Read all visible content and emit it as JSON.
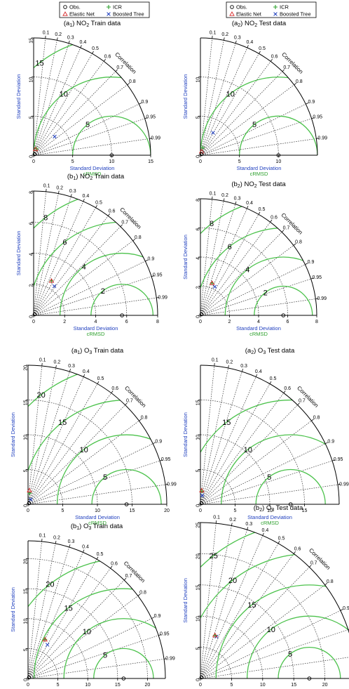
{
  "legend": {
    "items": [
      {
        "label": "Obs.",
        "marker": "circle",
        "color": "#000000"
      },
      {
        "label": "ICR",
        "marker": "plus",
        "color": "#2da02d"
      },
      {
        "label": "Elastic Net",
        "marker": "triangle",
        "color": "#d62728"
      },
      {
        "label": "Boosted Tree",
        "marker": "x",
        "color": "#1f3fbf"
      }
    ]
  },
  "labels": {
    "y_axis": "Standard Deviation",
    "x_axis": "Standard Deviation",
    "crmsd": "cRMSD",
    "correlation": "Correlation"
  },
  "colors": {
    "rms_arc": "#4cc24c",
    "axis_label": "#1f3fbf",
    "crmsd_label": "#2da02d"
  },
  "chart_data": [
    {
      "type": "scatter",
      "subtype": "taylor",
      "title_prefix": "(a",
      "subscript": "1",
      "title_suffix": ") NO",
      "chem_sub": "2",
      "title_end": " Train data",
      "smax": 15,
      "sd_ticks": [
        0,
        5,
        10,
        15
      ],
      "rms_levels": [
        5,
        10,
        15
      ],
      "obs_sd": 10,
      "correlation_ticks": [
        0.1,
        0.2,
        0.3,
        0.4,
        0.5,
        0.6,
        0.7,
        0.8,
        0.9,
        0.95,
        0.99
      ],
      "points": [
        {
          "name": "Boosted Tree",
          "sd": 3.6,
          "corr": 0.75
        },
        {
          "name": "ICR",
          "sd": 0.9,
          "corr": 0.4
        },
        {
          "name": "Elastic Net",
          "sd": 0.8,
          "corr": 0.3
        }
      ]
    },
    {
      "type": "scatter",
      "subtype": "taylor",
      "title_prefix": "(a",
      "subscript": "2",
      "title_suffix": ") NO",
      "chem_sub": "2",
      "title_end": " Test data",
      "smax": 15,
      "sd_ticks": [
        0,
        5,
        10
      ],
      "rms_levels": [
        5,
        10
      ],
      "obs_sd": 10,
      "correlation_ticks": [
        0.1,
        0.2,
        0.3,
        0.4,
        0.5,
        0.6,
        0.7,
        0.8,
        0.9,
        0.95,
        0.99
      ],
      "points": [
        {
          "name": "Boosted Tree",
          "sd": 3.3,
          "corr": 0.49
        },
        {
          "name": "ICR",
          "sd": 1.0,
          "corr": 0.3
        },
        {
          "name": "Elastic Net",
          "sd": 0.5,
          "corr": 0.3
        }
      ]
    },
    {
      "type": "scatter",
      "subtype": "taylor",
      "title_prefix": "(b",
      "subscript": "1",
      "title_suffix": ") NO",
      "chem_sub": "2",
      "title_end": " Train data",
      "smax": 8,
      "sd_ticks": [
        0,
        2,
        4,
        6,
        8
      ],
      "rms_levels": [
        2,
        4,
        6,
        8
      ],
      "obs_sd": 5.7,
      "correlation_ticks": [
        0.1,
        0.2,
        0.3,
        0.4,
        0.5,
        0.6,
        0.7,
        0.8,
        0.9,
        0.95,
        0.99
      ],
      "points": [
        {
          "name": "Boosted Tree",
          "sd": 2.3,
          "corr": 0.58
        },
        {
          "name": "ICR",
          "sd": 2.5,
          "corr": 0.46
        },
        {
          "name": "Elastic Net",
          "sd": 2.5,
          "corr": 0.46
        }
      ]
    },
    {
      "type": "scatter",
      "subtype": "taylor",
      "title_prefix": "(b",
      "subscript": "2",
      "title_suffix": ") NO",
      "chem_sub": "2",
      "title_end": " Test data",
      "smax": 8,
      "sd_ticks": [
        0,
        2,
        4,
        6,
        8
      ],
      "rms_levels": [
        2,
        4,
        6,
        8
      ],
      "obs_sd": 5.7,
      "correlation_ticks": [
        0.1,
        0.2,
        0.3,
        0.4,
        0.5,
        0.6,
        0.7,
        0.8,
        0.9,
        0.95,
        0.99
      ],
      "points": [
        {
          "name": "Boosted Tree",
          "sd": 2.2,
          "corr": 0.45
        },
        {
          "name": "ICR",
          "sd": 2.35,
          "corr": 0.34
        },
        {
          "name": "Elastic Net",
          "sd": 2.35,
          "corr": 0.34
        }
      ]
    },
    {
      "type": "scatter",
      "subtype": "taylor",
      "title_prefix": "(a",
      "subscript": "1",
      "title_suffix": ") O",
      "chem_sub": "3",
      "title_end": " Train data",
      "smax": 20,
      "sd_ticks": [
        0,
        5,
        10,
        15,
        20
      ],
      "rms_levels": [
        5,
        10,
        15,
        20
      ],
      "obs_sd": 14.2,
      "correlation_ticks": [
        0.1,
        0.2,
        0.3,
        0.4,
        0.5,
        0.6,
        0.7,
        0.8,
        0.9,
        0.95,
        0.99
      ],
      "points": [
        {
          "name": "Boosted Tree",
          "sd": 0.8,
          "corr": 0.5
        },
        {
          "name": "ICR",
          "sd": 1.6,
          "corr": 0.15
        },
        {
          "name": "Elastic Net",
          "sd": 2.0,
          "corr": 0.1
        }
      ]
    },
    {
      "type": "scatter",
      "subtype": "taylor",
      "title_prefix": "(a",
      "subscript": "2",
      "title_suffix": ") O",
      "chem_sub": "3",
      "title_end": " Test data",
      "smax": 20,
      "sd_ticks": [
        0,
        5,
        10,
        15
      ],
      "rms_levels": [
        5,
        10,
        15
      ],
      "obs_sd": 13,
      "correlation_ticks": [
        0.1,
        0.2,
        0.3,
        0.4,
        0.5,
        0.6,
        0.7,
        0.8,
        0.9,
        0.95,
        0.99
      ],
      "points": [
        {
          "name": "Boosted Tree",
          "sd": 1.3,
          "corr": 0.2
        },
        {
          "name": "ICR",
          "sd": 1.9,
          "corr": 0.1
        },
        {
          "name": "Elastic Net",
          "sd": 2.0,
          "corr": 0.1
        }
      ]
    },
    {
      "type": "scatter",
      "subtype": "taylor",
      "title_prefix": "(b",
      "subscript": "1",
      "title_suffix": ") O",
      "chem_sub": "3",
      "title_end": " Train data",
      "smax": 23,
      "sd_ticks": [
        0,
        5,
        10,
        15,
        20
      ],
      "rms_levels": [
        5,
        10,
        15,
        20
      ],
      "obs_sd": 16,
      "correlation_ticks": [
        0.1,
        0.2,
        0.3,
        0.4,
        0.5,
        0.6,
        0.7,
        0.8,
        0.9,
        0.95,
        0.99
      ],
      "points": [
        {
          "name": "Boosted Tree",
          "sd": 6.5,
          "corr": 0.5
        },
        {
          "name": "ICR",
          "sd": 7.1,
          "corr": 0.4
        },
        {
          "name": "Elastic Net",
          "sd": 7.1,
          "corr": 0.4
        }
      ]
    },
    {
      "type": "scatter",
      "subtype": "taylor",
      "title_prefix": "(b",
      "subscript": "2",
      "title_suffix": ") O",
      "chem_sub": "3",
      "title_end": " Test data",
      "smax": 25,
      "sd_ticks": [
        0,
        5,
        10,
        15,
        20,
        25
      ],
      "rms_levels": [
        5,
        10,
        15,
        20,
        25
      ],
      "obs_sd": 17.5,
      "correlation_ticks": [
        0.1,
        0.2,
        0.3,
        0.4,
        0.5,
        0.6,
        0.7,
        0.8,
        0.9,
        0.95,
        0.99
      ],
      "points": [
        {
          "name": "Boosted Tree",
          "sd": 7.2,
          "corr": 0.36
        },
        {
          "name": "ICR",
          "sd": 7.3,
          "corr": 0.32
        },
        {
          "name": "Elastic Net",
          "sd": 7.3,
          "corr": 0.32
        }
      ]
    }
  ]
}
